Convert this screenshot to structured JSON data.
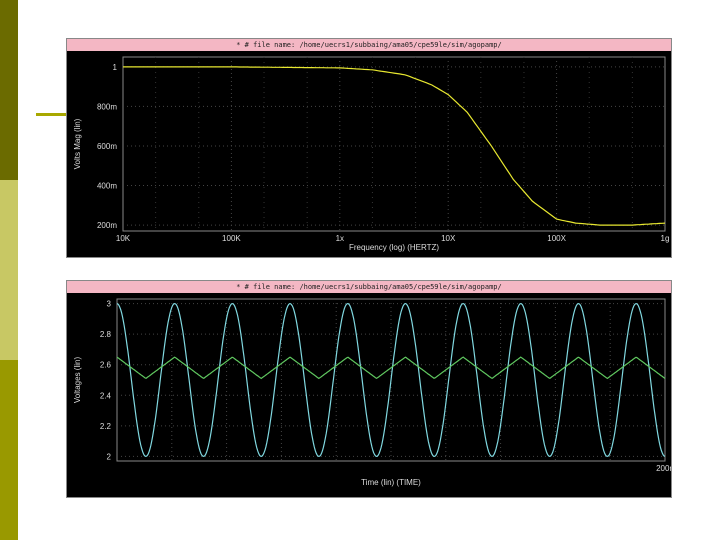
{
  "chart_data": [
    {
      "type": "line",
      "header": "* # file name: /home/uecrs1/subbaing/ama05/cpe59le/sim/agopamp/",
      "xlabel": "Frequency (log) (HERTZ)",
      "ylabel": "Volts Mag (lin)",
      "xscale": "log",
      "xlim": [
        10000,
        1000000000
      ],
      "ylim": [
        0.17,
        1.05
      ],
      "xticks": [
        {
          "v": 10000,
          "label": "10K"
        },
        {
          "v": 100000,
          "label": "100K"
        },
        {
          "v": 1000000,
          "label": "1x"
        },
        {
          "v": 10000000,
          "label": "10X"
        },
        {
          "v": 100000000,
          "label": "100X"
        },
        {
          "v": 1000000000,
          "label": "1g"
        }
      ],
      "yticks": [
        {
          "v": 1.0,
          "label": "1"
        },
        {
          "v": 0.8,
          "label": "800m"
        },
        {
          "v": 0.6,
          "label": "600m"
        },
        {
          "v": 0.4,
          "label": "400m"
        },
        {
          "v": 0.2,
          "label": "200m"
        }
      ],
      "series": [
        {
          "color": "#e8e830",
          "x": [
            10000,
            100000,
            1000000,
            2000000,
            4000000,
            7000000,
            10000000,
            15000000,
            25000000,
            40000000,
            60000000,
            100000000,
            150000000,
            250000000,
            500000000,
            1000000000
          ],
          "y": [
            1.0,
            1.0,
            0.995,
            0.985,
            0.96,
            0.91,
            0.86,
            0.77,
            0.6,
            0.43,
            0.32,
            0.23,
            0.21,
            0.2,
            0.2,
            0.21
          ]
        }
      ],
      "grid": true,
      "colors": {
        "grid": "#444444",
        "axis": "#888888"
      }
    },
    {
      "type": "line",
      "header": "* # file name: /home/uecrs1/subbaing/ama05/cpe59le/sim/agopamp/",
      "xlabel": "Time (lin) (TIME)",
      "ylabel": "Voltages (lin)",
      "xlim": [
        0,
        200
      ],
      "ylim": [
        1.97,
        3.03
      ],
      "xticks": [
        {
          "v": 200,
          "label": "200n"
        }
      ],
      "yticks": [
        {
          "v": 3.0,
          "label": "3"
        },
        {
          "v": 2.8,
          "label": "2.8"
        },
        {
          "v": 2.6,
          "label": "2.6"
        },
        {
          "v": 2.4,
          "label": "2.4"
        },
        {
          "v": 2.2,
          "label": "2.2"
        },
        {
          "v": 2.0,
          "label": "2"
        }
      ],
      "series": [
        {
          "color": "#80d8e0",
          "kind": "sine",
          "offset": 2.5,
          "amplitude": 0.5,
          "cycles": 9.5
        },
        {
          "color": "#60c860",
          "kind": "tri",
          "offset": 2.58,
          "amplitude": 0.07,
          "cycles": 9.5
        }
      ],
      "grid": true,
      "colors": {
        "grid": "#444444",
        "axis": "#888888"
      }
    }
  ]
}
